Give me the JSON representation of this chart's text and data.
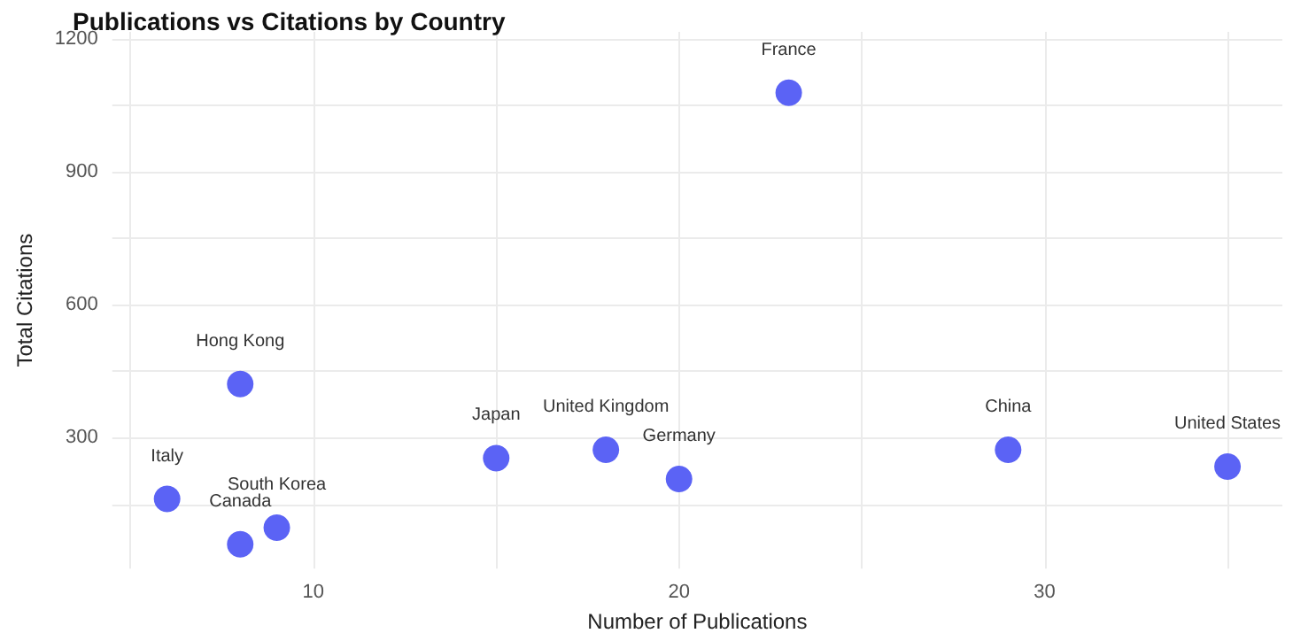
{
  "chart_data": {
    "type": "scatter",
    "title": "Publications vs Citations by Country",
    "xlabel": "Number of Publications",
    "ylabel": "Total Citations",
    "x": [
      23,
      29,
      35,
      20,
      18,
      15,
      8,
      6,
      9,
      8
    ],
    "values": [
      1078,
      273,
      235,
      207,
      273,
      254,
      421,
      162,
      97,
      60
    ],
    "color": "#5b63f5",
    "marker": "circle",
    "grid": true,
    "xlim": [
      4.5,
      36.5
    ],
    "xticks": [
      {
        "value": 5,
        "label": null
      },
      10,
      {
        "value": 15,
        "label": null
      },
      20,
      {
        "value": 25,
        "label": null
      },
      30,
      {
        "value": 35,
        "label": null
      }
    ],
    "ylim": [
      5,
      1215
    ],
    "yticks": [
      {
        "value": 150,
        "label": null
      },
      300,
      {
        "value": 450,
        "label": null
      },
      600,
      {
        "value": 750,
        "label": null
      },
      900,
      {
        "value": 1050,
        "label": null
      },
      1200
    ],
    "annotations": [
      {
        "text": "France",
        "x": 23,
        "y": 1078
      },
      {
        "text": "China",
        "x": 29,
        "y": 273
      },
      {
        "text": "United States",
        "x": 35,
        "y": 235
      },
      {
        "text": "Germany",
        "x": 20,
        "y": 207
      },
      {
        "text": "United Kingdom",
        "x": 18,
        "y": 273
      },
      {
        "text": "Japan",
        "x": 15,
        "y": 254
      },
      {
        "text": "Hong Kong",
        "x": 8,
        "y": 421
      },
      {
        "text": "Italy",
        "x": 6,
        "y": 162
      },
      {
        "text": "South Korea",
        "x": 9,
        "y": 97
      },
      {
        "text": "Canada",
        "x": 8,
        "y": 60
      }
    ]
  }
}
